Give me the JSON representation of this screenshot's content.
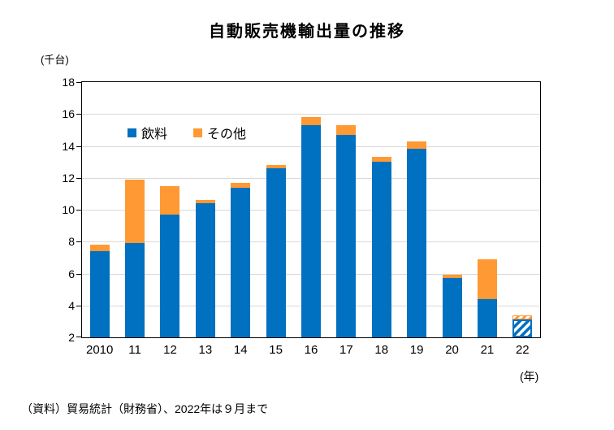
{
  "chart_data": {
    "type": "bar",
    "stacked": true,
    "title": "自動販売機輸出量の推移",
    "unit": "(千台)",
    "x_unit": "(年)",
    "categories": [
      "2010",
      "11",
      "12",
      "13",
      "14",
      "15",
      "16",
      "17",
      "18",
      "19",
      "20",
      "21",
      "22"
    ],
    "series": [
      {
        "name": "飲料",
        "color": "#0070C0",
        "values": [
          7.4,
          7.9,
          9.7,
          10.4,
          11.4,
          12.6,
          15.3,
          14.7,
          13.0,
          13.8,
          5.7,
          4.4,
          3.1
        ]
      },
      {
        "name": "その他",
        "color": "#FF9933",
        "values": [
          0.4,
          4.0,
          1.8,
          0.2,
          0.3,
          0.2,
          0.5,
          0.6,
          0.3,
          0.5,
          0.2,
          2.5,
          0.3
        ]
      }
    ],
    "ylim": [
      2,
      18
    ],
    "ytick_step": 2,
    "grid": "horizontal",
    "legend_position": "inside-top-left",
    "hatched_categories": [
      "22"
    ]
  },
  "source_note": "（資料）貿易統計（財務省）、2022年は９月まで",
  "colors": {
    "axis": "#000000",
    "gridline": "#D9D9D9",
    "background": "#FFFFFF"
  }
}
